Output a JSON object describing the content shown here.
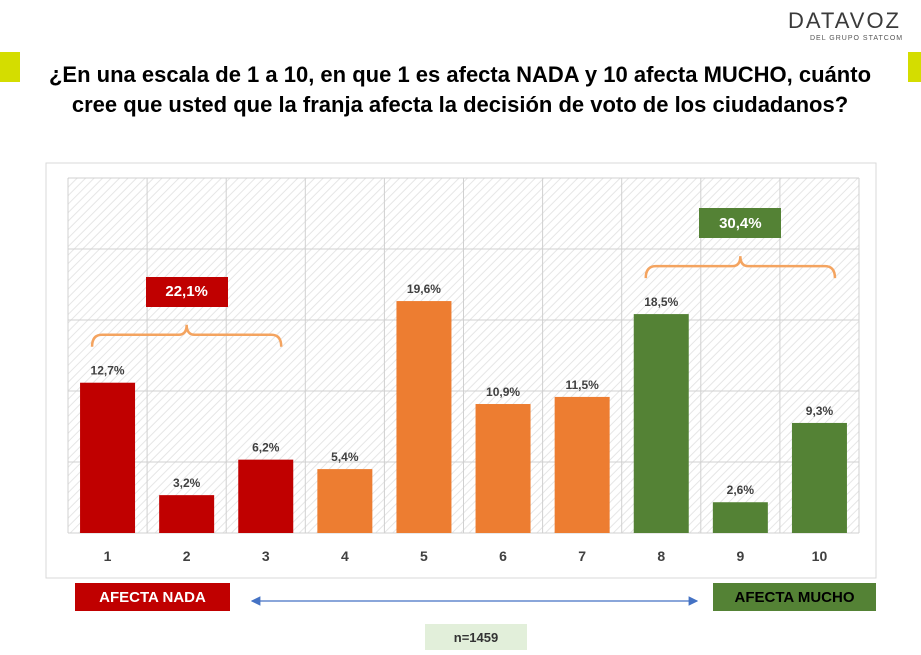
{
  "header": {
    "logo_text": "DATAVOZ",
    "logo_sub": "DEL GRUPO STATCOM",
    "title": "¿En una escala de 1 a 10, en que 1 es afecta NADA y 10 afecta MUCHO, cuánto cree que usted que la franja afecta la decisión de voto de los ciudadanos?"
  },
  "colors": {
    "red": "#c00000",
    "orange": "#ed7d31",
    "green": "#548235",
    "bracket": "#f4a460",
    "arrow": "#4472c4",
    "accent": "#d4dd00"
  },
  "chart_data": {
    "type": "bar",
    "categories": [
      "1",
      "2",
      "3",
      "4",
      "5",
      "6",
      "7",
      "8",
      "9",
      "10"
    ],
    "values": [
      12.7,
      3.2,
      6.2,
      5.4,
      19.6,
      10.9,
      11.5,
      18.5,
      2.6,
      9.3
    ],
    "value_labels": [
      "12,7%",
      "3,2%",
      "6,2%",
      "5,4%",
      "19,6%",
      "10,9%",
      "11,5%",
      "18,5%",
      "2,6%",
      "9,3%"
    ],
    "bar_colors": [
      "#c00000",
      "#c00000",
      "#c00000",
      "#ed7d31",
      "#ed7d31",
      "#ed7d31",
      "#ed7d31",
      "#548235",
      "#548235",
      "#548235"
    ],
    "ylim": [
      0,
      30
    ],
    "grid": true,
    "groups": [
      {
        "label": "22,1%",
        "from": 0,
        "to": 2,
        "color": "#c00000"
      },
      {
        "label": "30,4%",
        "from": 7,
        "to": 9,
        "color": "#548235"
      }
    ]
  },
  "scale_labels": {
    "left": "AFECTA NADA",
    "right": "AFECTA MUCHO"
  },
  "sample": "n=1459"
}
